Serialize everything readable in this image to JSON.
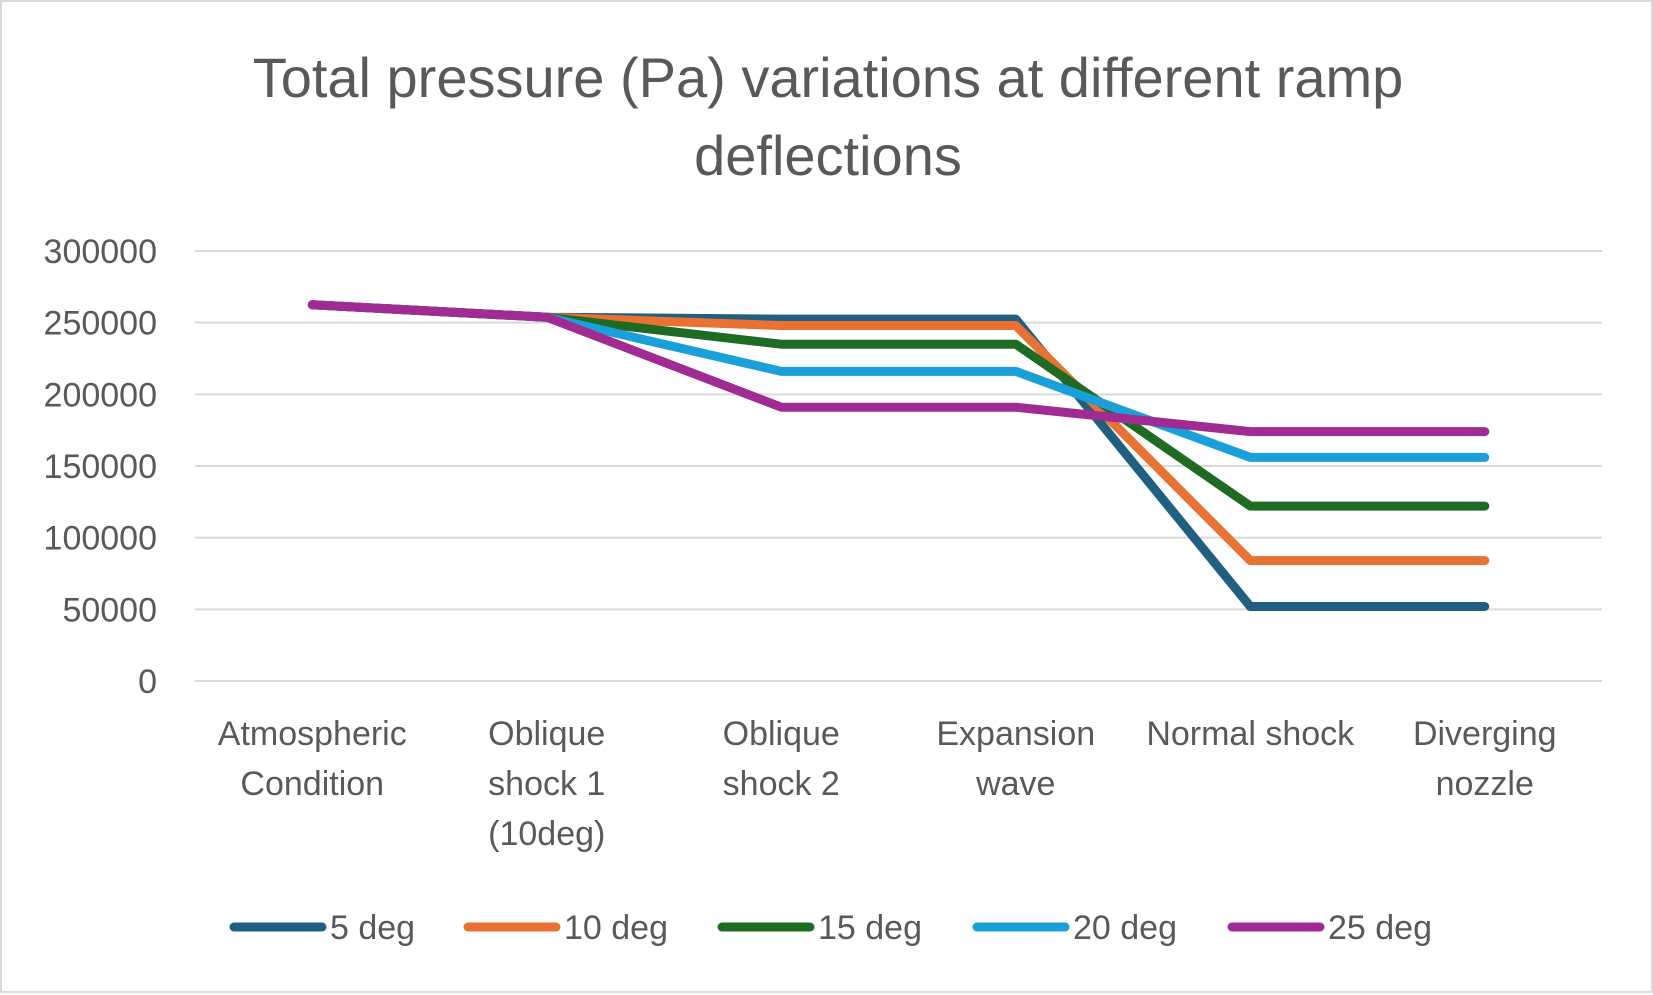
{
  "chart_data": {
    "type": "line",
    "title_lines": [
      "Total pressure (Pa) variations at different ramp",
      "deflections"
    ],
    "xlabel": "",
    "ylabel": "",
    "categories": [
      [
        "Atmospheric",
        "Condition"
      ],
      [
        "Oblique",
        "shock 1",
        "(10deg)"
      ],
      [
        "Oblique",
        "shock 2"
      ],
      [
        "Expansion",
        "wave"
      ],
      [
        "Normal shock"
      ],
      [
        "Diverging",
        "nozzle"
      ]
    ],
    "ylim": [
      0,
      300000
    ],
    "yticks": [
      "0",
      "50000",
      "100000",
      "150000",
      "200000",
      "250000",
      "300000"
    ],
    "grid": true,
    "legend_position": "bottom",
    "series": [
      {
        "name": "5 deg",
        "color": "#1f5f7f",
        "values": [
          262500,
          253800,
          252500,
          252500,
          52000,
          52000
        ]
      },
      {
        "name": "10 deg",
        "color": "#e97132",
        "values": [
          262500,
          253800,
          248000,
          248000,
          84000,
          84000
        ]
      },
      {
        "name": "15 deg",
        "color": "#1e6b24",
        "values": [
          262500,
          253800,
          235000,
          235000,
          122000,
          122000
        ]
      },
      {
        "name": "20 deg",
        "color": "#1aa0d8",
        "values": [
          262500,
          253800,
          216000,
          216000,
          156000,
          156000
        ]
      },
      {
        "name": "25 deg",
        "color": "#a02b93",
        "values": [
          262500,
          253800,
          191000,
          191000,
          174000,
          174000
        ]
      }
    ]
  },
  "colors": {
    "text": "#595959",
    "grid": "#d9d9d9",
    "border": "#d9d9d9"
  }
}
